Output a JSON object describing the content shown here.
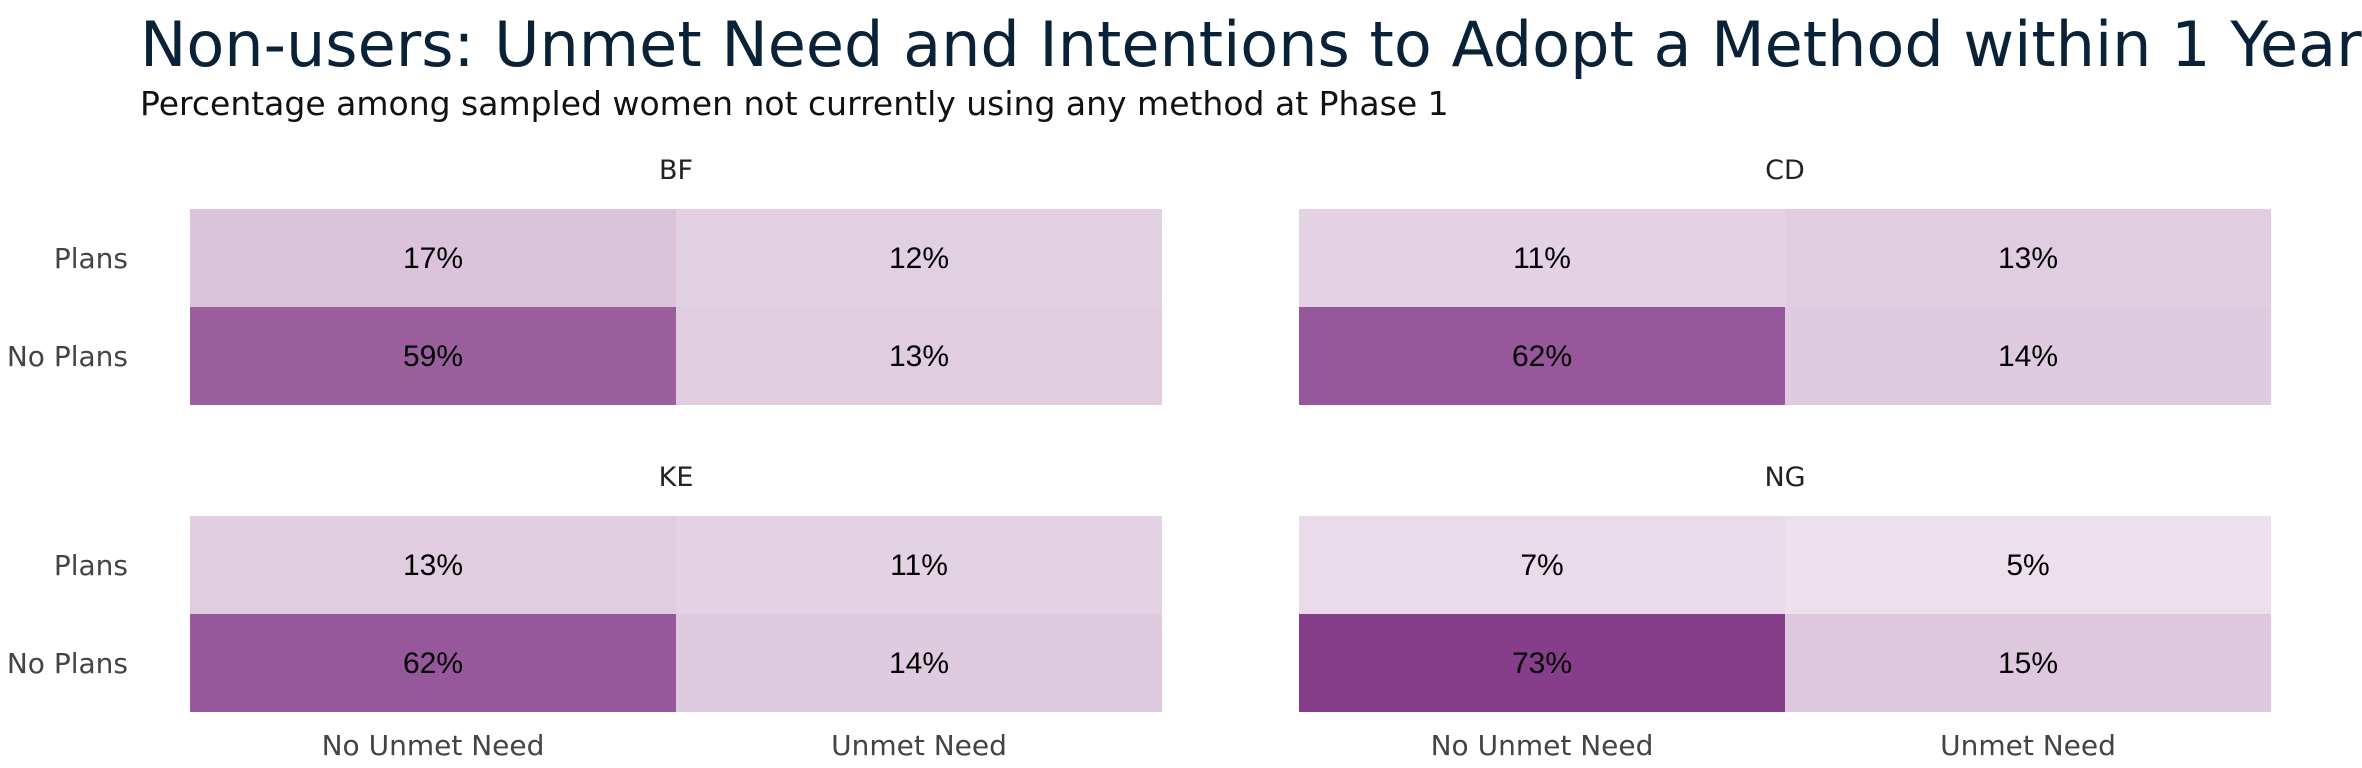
{
  "title": "Non-users: Unmet Need and Intentions to Adopt a Method within 1 Year",
  "subtitle": "Percentage among sampled women not currently using any method at Phase 1",
  "chart_data": {
    "type": "heatmap",
    "title": "Non-users: Unmet Need and Intentions to Adopt a Method within 1 Year",
    "subtitle": "Percentage among sampled women not currently using any method at Phase 1",
    "columns": [
      "No Unmet Need",
      "Unmet Need"
    ],
    "rows": [
      "Plans",
      "No Plans"
    ],
    "color_low": "#f3ecf3",
    "color_high": "#7b2d80",
    "value_range": [
      0,
      80
    ],
    "facets": [
      {
        "name": "BF",
        "values": [
          [
            17,
            12
          ],
          [
            59,
            13
          ]
        ]
      },
      {
        "name": "CD",
        "values": [
          [
            11,
            13
          ],
          [
            62,
            14
          ]
        ]
      },
      {
        "name": "KE",
        "values": [
          [
            13,
            11
          ],
          [
            62,
            14
          ]
        ]
      },
      {
        "name": "NG",
        "values": [
          [
            7,
            5
          ],
          [
            73,
            15
          ]
        ]
      }
    ]
  }
}
